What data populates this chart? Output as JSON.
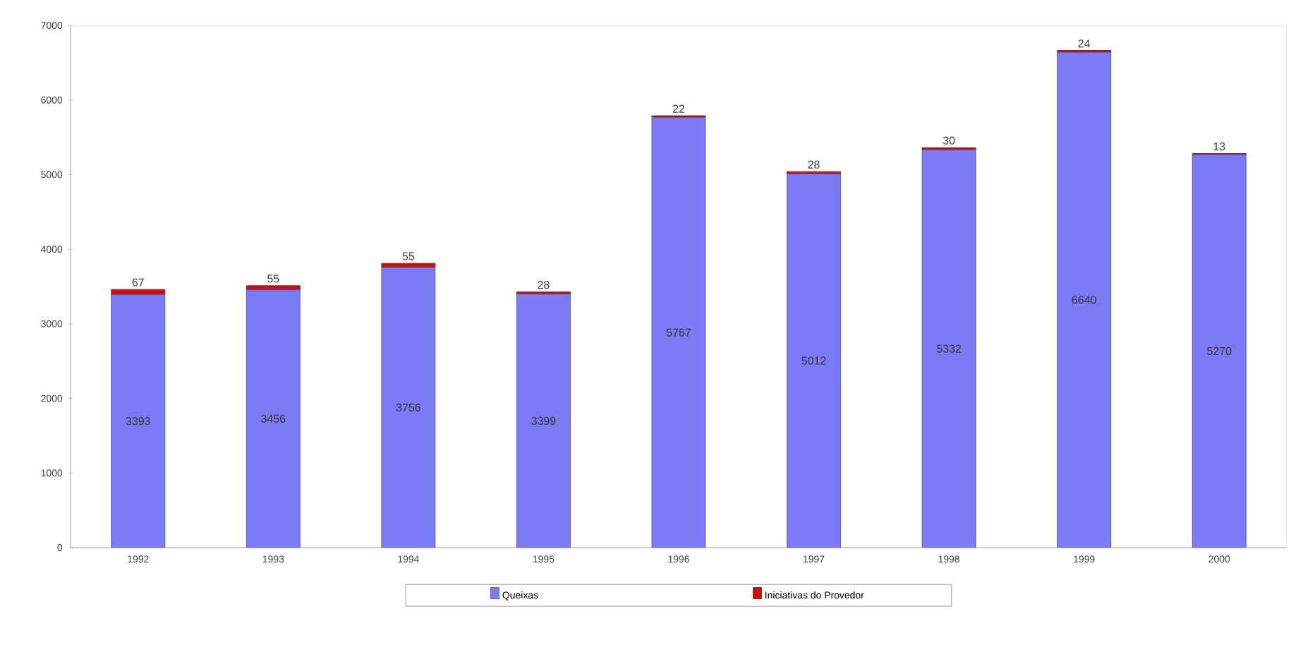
{
  "chart_data": {
    "type": "bar",
    "stacked": true,
    "categories": [
      "1992",
      "1993",
      "1994",
      "1995",
      "1996",
      "1997",
      "1998",
      "1999",
      "2000"
    ],
    "series": [
      {
        "name": "Queixas",
        "color": "#7b7bf5",
        "values": [
          3393,
          3456,
          3756,
          3399,
          5767,
          5012,
          5332,
          6640,
          5270
        ]
      },
      {
        "name": "Iniciativas do Provedor",
        "color": "#cc1010",
        "values": [
          67,
          55,
          55,
          28,
          22,
          28,
          30,
          24,
          13
        ]
      }
    ],
    "ylim": [
      0,
      7000
    ],
    "yticks": [
      0,
      1000,
      2000,
      3000,
      4000,
      5000,
      6000,
      7000
    ],
    "data_labels": true,
    "legend": "bottom",
    "grid": false
  }
}
